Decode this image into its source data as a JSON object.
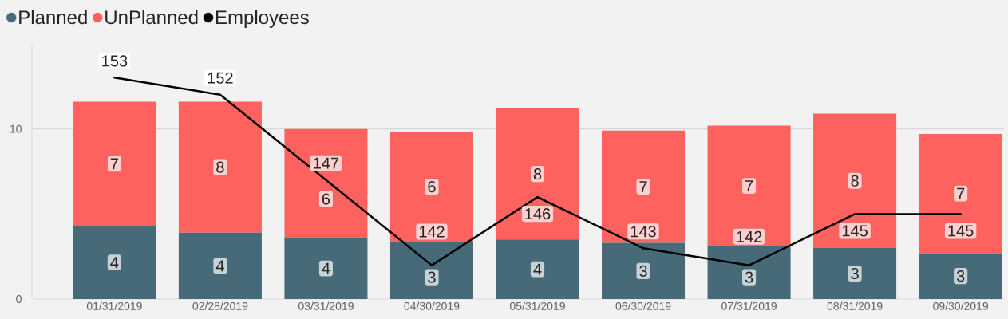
{
  "chart_data": {
    "type": "bar",
    "stacked": true,
    "legend": "top left",
    "grid": "y",
    "categories": [
      "01/31/2019",
      "02/28/2019",
      "03/31/2019",
      "04/30/2019",
      "05/31/2019",
      "06/30/2019",
      "07/31/2019",
      "08/31/2019",
      "09/30/2019"
    ],
    "ylim": [
      0,
      15
    ],
    "yticks": [
      0,
      10
    ],
    "series": [
      {
        "name": "Planned",
        "color": "#466a78",
        "values": [
          4.3,
          3.9,
          3.6,
          3.4,
          3.5,
          3.3,
          3.1,
          3.0,
          2.7
        ],
        "value_labels": [
          "4",
          "4",
          "4",
          "3",
          "4",
          "3",
          "3",
          "3",
          "3"
        ]
      },
      {
        "name": "UnPlanned",
        "color": "#fd625e",
        "values": [
          7.3,
          7.7,
          6.4,
          6.4,
          7.7,
          6.6,
          7.1,
          7.9,
          7.0
        ],
        "value_labels": [
          "7",
          "8",
          "6",
          "6",
          "8",
          "7",
          "7",
          "8",
          "7"
        ]
      },
      {
        "name": "Employees",
        "type": "line",
        "axis": "y2",
        "color": "#000000",
        "values": [
          153,
          152,
          147,
          142,
          146,
          143,
          142,
          145,
          145
        ],
        "value_labels": [
          "153",
          "152",
          "147",
          "142",
          "146",
          "143",
          "142",
          "145",
          "145"
        ]
      }
    ]
  }
}
